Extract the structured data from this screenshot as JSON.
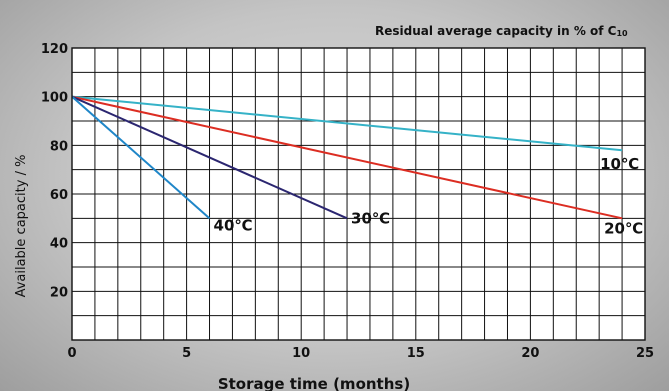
{
  "chart_data": {
    "type": "line",
    "title": "Residual average capacity in % of C",
    "title_subscript": "10",
    "xlabel": "Storage time (months)",
    "ylabel": "Available capacity / %",
    "xlim": [
      0,
      25
    ],
    "ylim": [
      0,
      120
    ],
    "x_ticks": [
      0,
      5,
      10,
      15,
      20,
      25
    ],
    "y_ticks": [
      20,
      40,
      60,
      80,
      100,
      120
    ],
    "grid": true,
    "series": [
      {
        "name": "10℃",
        "color": "#35b2c7",
        "x": [
          0,
          24
        ],
        "y": [
          100,
          78
        ]
      },
      {
        "name": "20℃",
        "color": "#dc2d22",
        "x": [
          0,
          24
        ],
        "y": [
          100,
          50
        ]
      },
      {
        "name": "30℃",
        "color": "#2b2670",
        "x": [
          0,
          12
        ],
        "y": [
          100,
          50
        ]
      },
      {
        "name": "40℃",
        "color": "#1f86c8",
        "x": [
          0,
          6
        ],
        "y": [
          100,
          50
        ]
      }
    ]
  }
}
